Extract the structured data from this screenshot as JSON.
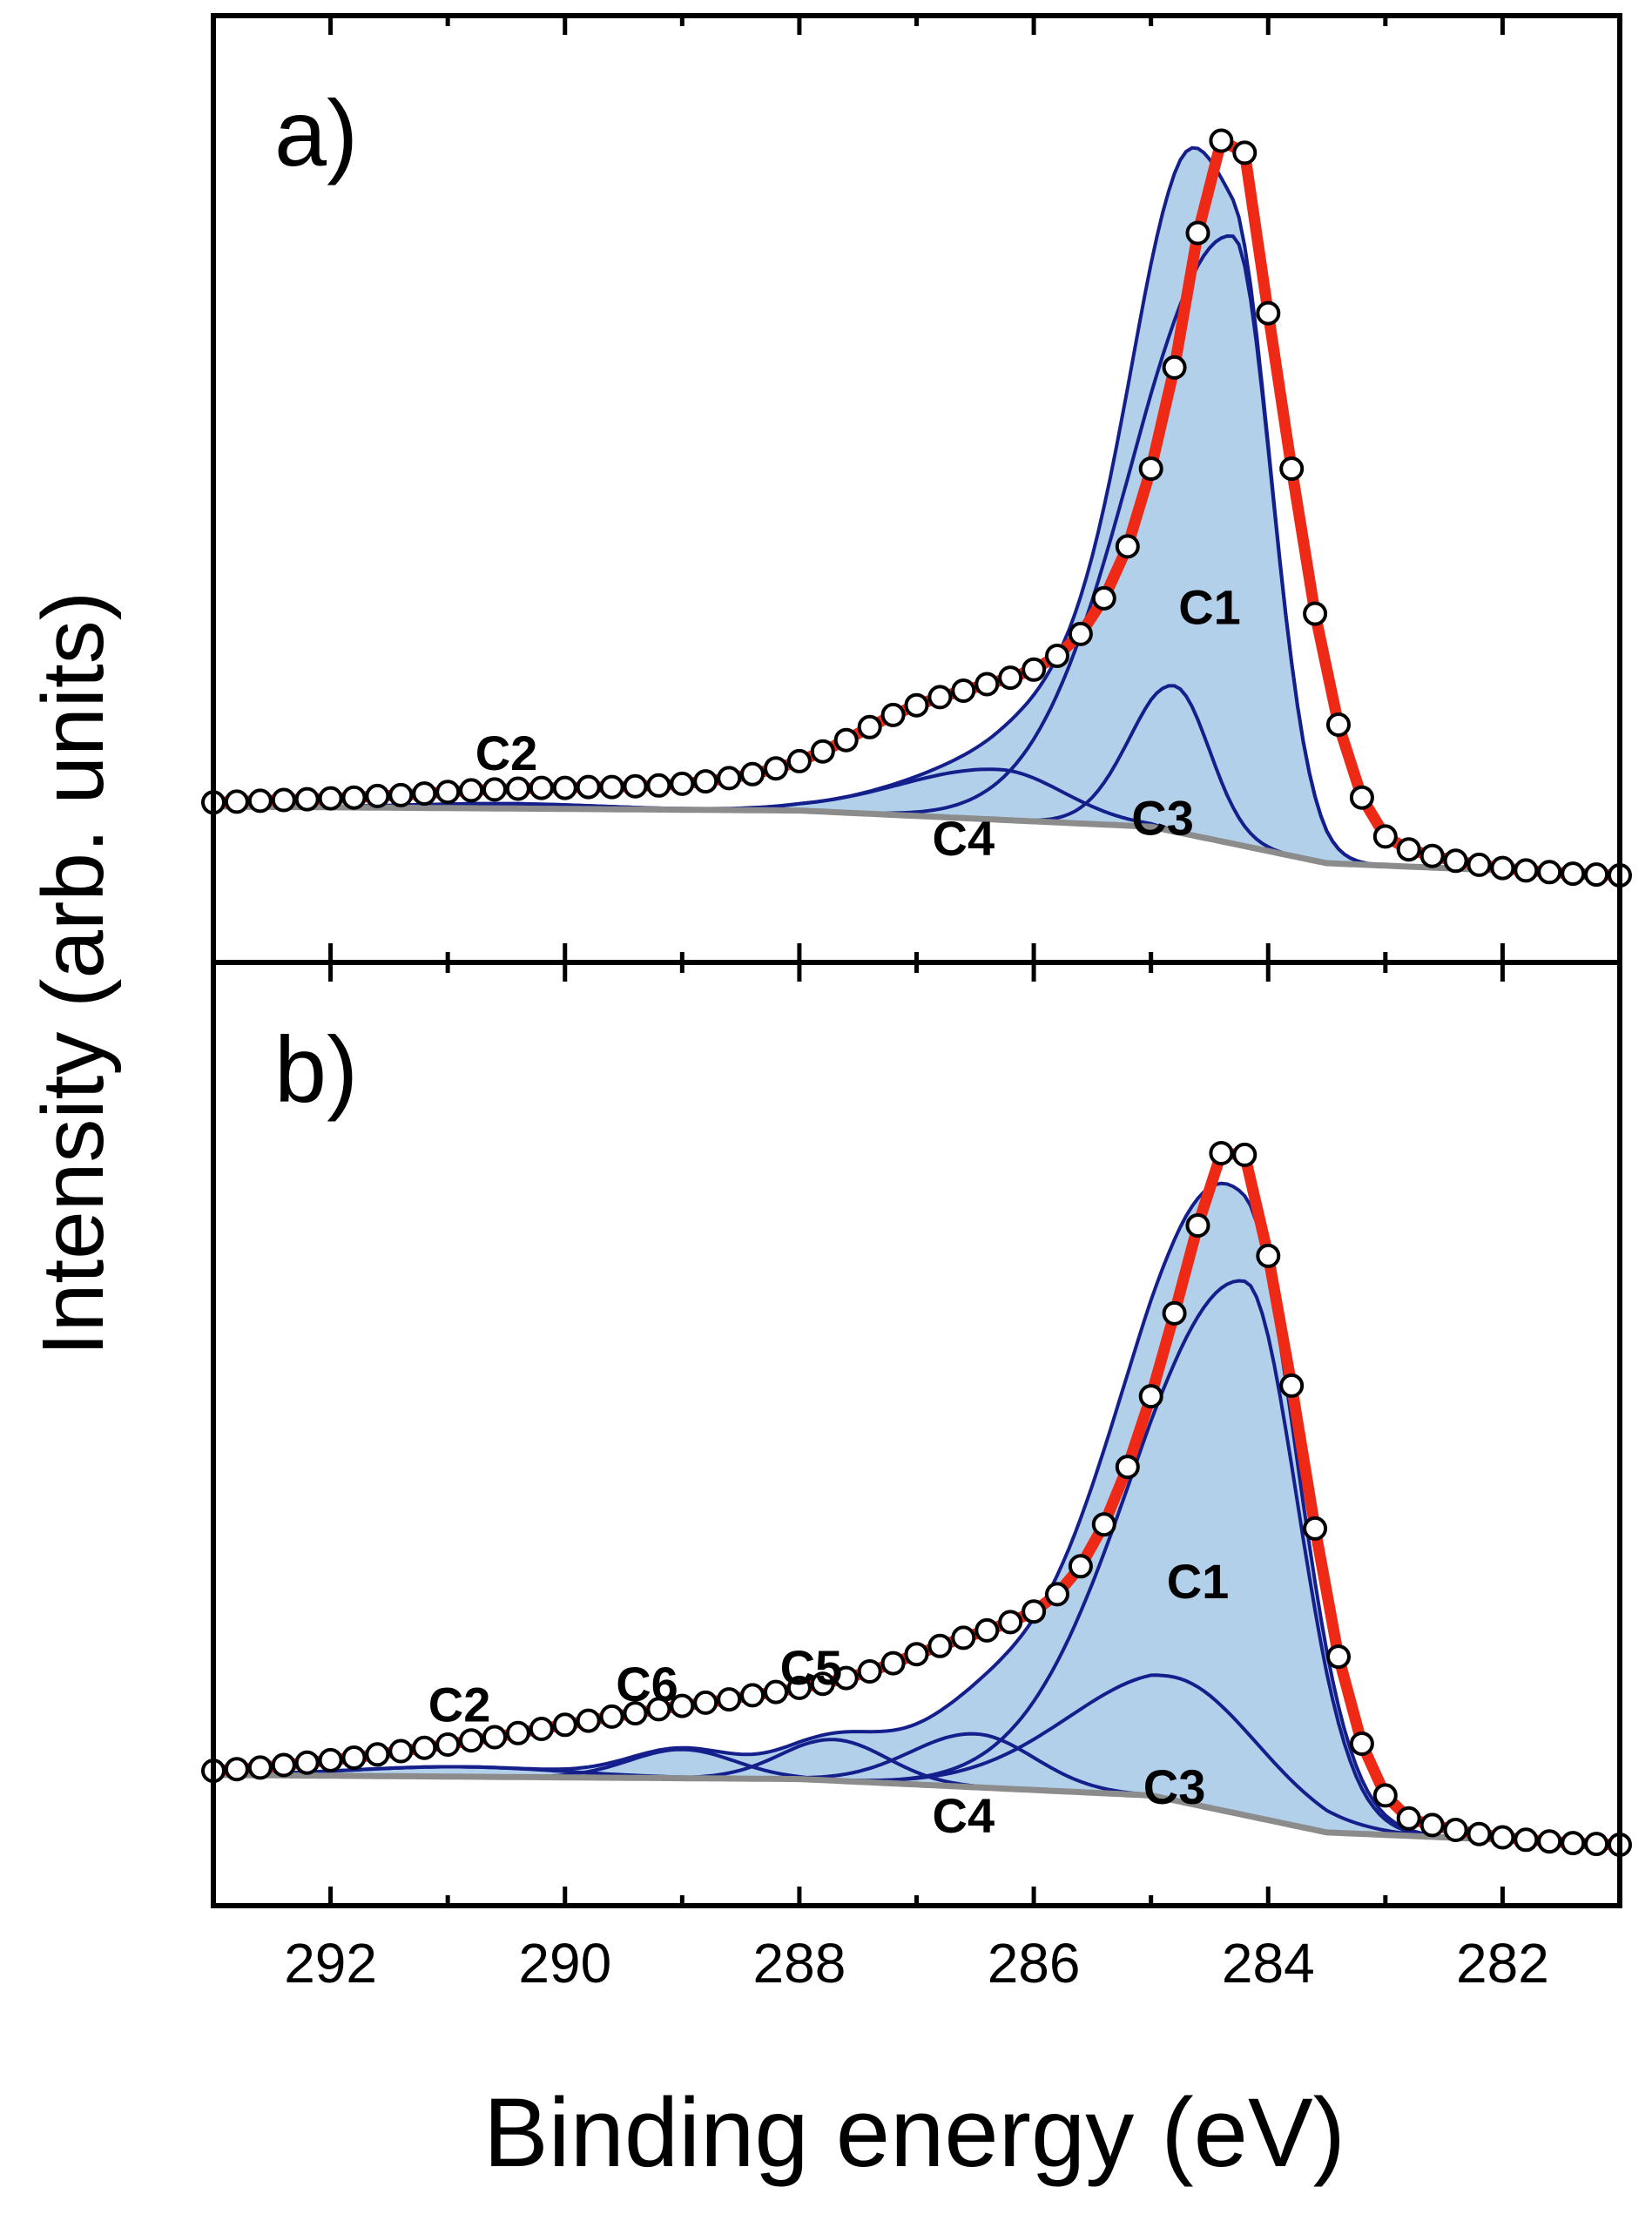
{
  "chart_data": {
    "type": "line",
    "title": "",
    "xlabel": "Binding energy (eV)",
    "ylabel": "Intensity (arb. units)",
    "xlim": [
      293.0,
      281.0
    ],
    "x_reversed": true,
    "xticks": [
      292,
      290,
      288,
      286,
      284,
      282
    ],
    "grid": false,
    "legend": "none",
    "colors": {
      "envelope": "#ee2a16",
      "component_line": "#141f8c",
      "component_fill": "#b3d0eb",
      "background": "#8c8c8c",
      "points_edge": "#000000",
      "points_face": "#ffffff"
    },
    "panels": [
      {
        "label": "a)",
        "ylim": [
          0,
          100
        ],
        "background": [
          [
            293,
            8.5
          ],
          [
            288,
            8
          ],
          [
            285,
            6
          ],
          [
            283.5,
            1.5
          ],
          [
            281,
            0
          ]
        ],
        "components": [
          {
            "name": "C1",
            "center": 284.3,
            "height": 75,
            "sigma_low": 0.33,
            "sigma_high": 0.85,
            "label_pos": [
              284.5,
              31
            ]
          },
          {
            "name": "C2",
            "center": 290.5,
            "height": 0.6,
            "sigma_low": 0.8,
            "sigma_high": 0.8,
            "label_pos": [
              290.5,
              13
            ]
          },
          {
            "name": "C3",
            "center": 284.8,
            "height": 18,
            "sigma_low": 0.3,
            "sigma_high": 0.38,
            "label_pos": [
              284.9,
              5
            ]
          },
          {
            "name": "C4",
            "center": 286.3,
            "height": 6.2,
            "sigma_low": 0.55,
            "sigma_high": 0.85,
            "label_pos": [
              286.6,
              2.5
            ]
          }
        ],
        "envelope_x": [
          293.0,
          292.8,
          292.6,
          292.4,
          292.2,
          292.0,
          291.8,
          291.6,
          291.4,
          291.2,
          291.0,
          290.8,
          290.6,
          290.4,
          290.2,
          290.0,
          289.8,
          289.6,
          289.4,
          289.2,
          289.0,
          288.8,
          288.6,
          288.4,
          288.2,
          288.0,
          287.8,
          287.6,
          287.4,
          287.2,
          287.0,
          286.8,
          286.6,
          286.4,
          286.2,
          286.0,
          285.8,
          285.6,
          285.4,
          285.2,
          285.0,
          284.8,
          284.6,
          284.4,
          284.2,
          284.0,
          283.8,
          283.6,
          283.4,
          283.2,
          283.0,
          282.8,
          282.6,
          282.4,
          282.2,
          282.0,
          281.8,
          281.6,
          281.4,
          281.2,
          281.0
        ],
        "envelope_y": [
          9.0,
          9.1,
          9.2,
          9.3,
          9.4,
          9.5,
          9.6,
          9.8,
          9.9,
          10.1,
          10.3,
          10.5,
          10.6,
          10.7,
          10.8,
          10.8,
          10.9,
          10.9,
          11.0,
          11.1,
          11.3,
          11.6,
          12.0,
          12.5,
          13.2,
          14.1,
          15.3,
          16.7,
          18.3,
          19.8,
          21.0,
          22.0,
          22.8,
          23.6,
          24.4,
          25.4,
          27.1,
          29.8,
          34.2,
          40.6,
          50.2,
          62.7,
          79.3,
          90.7,
          89.2,
          69.4,
          50.2,
          32.3,
          18.6,
          9.6,
          4.8,
          3.2,
          2.4,
          1.8,
          1.3,
          0.9,
          0.6,
          0.4,
          0.2,
          0.1,
          0.0
        ],
        "data_points": [
          [
            293.0,
            9.0
          ],
          [
            292.8,
            9.1
          ],
          [
            292.6,
            9.2
          ],
          [
            292.4,
            9.3
          ],
          [
            292.2,
            9.4
          ],
          [
            292.0,
            9.5
          ],
          [
            291.8,
            9.6
          ],
          [
            291.6,
            9.8
          ],
          [
            291.4,
            9.9
          ],
          [
            291.2,
            10.1
          ],
          [
            291.0,
            10.3
          ],
          [
            290.8,
            10.5
          ],
          [
            290.6,
            10.6
          ],
          [
            290.4,
            10.7
          ],
          [
            290.2,
            10.8
          ],
          [
            290.0,
            10.8
          ],
          [
            289.8,
            10.9
          ],
          [
            289.6,
            10.9
          ],
          [
            289.4,
            11.0
          ],
          [
            289.2,
            11.1
          ],
          [
            289.0,
            11.3
          ],
          [
            288.8,
            11.6
          ],
          [
            288.6,
            12.0
          ],
          [
            288.4,
            12.5
          ],
          [
            288.2,
            13.2
          ],
          [
            288.0,
            14.1
          ],
          [
            287.8,
            15.3
          ],
          [
            287.6,
            16.7
          ],
          [
            287.4,
            18.3
          ],
          [
            287.2,
            19.8
          ],
          [
            287.0,
            21.0
          ],
          [
            286.8,
            22.0
          ],
          [
            286.6,
            22.8
          ],
          [
            286.4,
            23.6
          ],
          [
            286.2,
            24.4
          ],
          [
            286.0,
            25.4
          ],
          [
            285.8,
            27.1
          ],
          [
            285.6,
            29.8
          ],
          [
            285.4,
            34.2
          ],
          [
            285.2,
            40.6
          ],
          [
            285.0,
            50.2
          ],
          [
            284.8,
            62.7
          ],
          [
            284.6,
            79.3
          ],
          [
            284.4,
            90.7
          ],
          [
            284.2,
            89.2
          ],
          [
            284.0,
            69.4
          ],
          [
            283.8,
            50.2
          ],
          [
            283.6,
            32.3
          ],
          [
            283.4,
            18.6
          ],
          [
            283.2,
            9.6
          ],
          [
            283.0,
            4.8
          ],
          [
            282.8,
            3.2
          ],
          [
            282.6,
            2.4
          ],
          [
            282.4,
            1.8
          ],
          [
            282.2,
            1.3
          ],
          [
            282.0,
            0.9
          ],
          [
            281.8,
            0.6
          ],
          [
            281.6,
            0.4
          ],
          [
            281.4,
            0.2
          ],
          [
            281.2,
            0.1
          ],
          [
            281.0,
            0.0
          ]
        ]
      },
      {
        "label": "b)",
        "ylim": [
          0,
          100
        ],
        "background": [
          [
            293,
            8.5
          ],
          [
            288,
            8
          ],
          [
            285,
            6
          ],
          [
            283.5,
            1.5
          ],
          [
            281,
            0
          ]
        ],
        "components": [
          {
            "name": "C1",
            "center": 284.2,
            "height": 65,
            "sigma_low": 0.45,
            "sigma_high": 0.95,
            "label_pos": [
              284.6,
              30
            ]
          },
          {
            "name": "C2",
            "center": 290.9,
            "height": 1.2,
            "sigma_low": 0.9,
            "sigma_high": 0.9,
            "label_pos": [
              290.9,
              15
            ]
          },
          {
            "name": "C3",
            "center": 284.8,
            "height": 15,
            "sigma_low": 0.7,
            "sigma_high": 0.9,
            "label_pos": [
              284.8,
              5
            ]
          },
          {
            "name": "C4",
            "center": 286.5,
            "height": 6.5,
            "sigma_low": 0.5,
            "sigma_high": 0.55,
            "label_pos": [
              286.6,
              1.5
            ]
          },
          {
            "name": "C5",
            "center": 287.7,
            "height": 5.0,
            "sigma_low": 0.45,
            "sigma_high": 0.45,
            "label_pos": [
              287.9,
              19.5
            ]
          },
          {
            "name": "C6",
            "center": 289.0,
            "height": 3.5,
            "sigma_low": 0.45,
            "sigma_high": 0.45,
            "label_pos": [
              289.3,
              17.5
            ]
          }
        ],
        "envelope_x": [
          293.0,
          292.8,
          292.6,
          292.4,
          292.2,
          292.0,
          291.8,
          291.6,
          291.4,
          291.2,
          291.0,
          290.8,
          290.6,
          290.4,
          290.2,
          290.0,
          289.8,
          289.6,
          289.4,
          289.2,
          289.0,
          288.8,
          288.6,
          288.4,
          288.2,
          288.0,
          287.8,
          287.6,
          287.4,
          287.2,
          287.0,
          286.8,
          286.6,
          286.4,
          286.2,
          286.0,
          285.8,
          285.6,
          285.4,
          285.2,
          285.0,
          284.8,
          284.6,
          284.4,
          284.2,
          284.0,
          283.8,
          283.6,
          283.4,
          283.2,
          283.0,
          282.8,
          282.6,
          282.4,
          282.2,
          282.0,
          281.8,
          281.6,
          281.4,
          281.2,
          281.0
        ],
        "envelope_y": [
          9.0,
          9.2,
          9.4,
          9.7,
          10.0,
          10.3,
          10.6,
          11.0,
          11.4,
          11.8,
          12.2,
          12.7,
          13.1,
          13.6,
          14.1,
          14.6,
          15.1,
          15.6,
          16.0,
          16.5,
          16.9,
          17.3,
          17.7,
          18.2,
          18.6,
          19.1,
          19.6,
          20.3,
          21.1,
          22.1,
          23.2,
          24.2,
          25.2,
          26.1,
          27.1,
          28.4,
          30.5,
          33.9,
          39.0,
          46.0,
          54.6,
          64.7,
          75.4,
          84.2,
          84.0,
          71.7,
          55.9,
          38.5,
          22.9,
          12.3,
          6.0,
          3.2,
          2.4,
          1.8,
          1.3,
          0.9,
          0.6,
          0.4,
          0.2,
          0.1,
          0.0
        ],
        "data_points": [
          [
            293.0,
            9.0
          ],
          [
            292.8,
            9.2
          ],
          [
            292.6,
            9.4
          ],
          [
            292.4,
            9.7
          ],
          [
            292.2,
            10.0
          ],
          [
            292.0,
            10.3
          ],
          [
            291.8,
            10.6
          ],
          [
            291.6,
            11.0
          ],
          [
            291.4,
            11.4
          ],
          [
            291.2,
            11.8
          ],
          [
            291.0,
            12.2
          ],
          [
            290.8,
            12.7
          ],
          [
            290.6,
            13.1
          ],
          [
            290.4,
            13.6
          ],
          [
            290.2,
            14.1
          ],
          [
            290.0,
            14.6
          ],
          [
            289.8,
            15.1
          ],
          [
            289.6,
            15.6
          ],
          [
            289.4,
            16.0
          ],
          [
            289.2,
            16.5
          ],
          [
            289.0,
            16.9
          ],
          [
            288.8,
            17.3
          ],
          [
            288.6,
            17.7
          ],
          [
            288.4,
            18.2
          ],
          [
            288.2,
            18.6
          ],
          [
            288.0,
            19.1
          ],
          [
            287.8,
            19.6
          ],
          [
            287.6,
            20.3
          ],
          [
            287.4,
            21.1
          ],
          [
            287.2,
            22.1
          ],
          [
            287.0,
            23.2
          ],
          [
            286.8,
            24.2
          ],
          [
            286.6,
            25.2
          ],
          [
            286.4,
            26.1
          ],
          [
            286.2,
            27.1
          ],
          [
            286.0,
            28.4
          ],
          [
            285.8,
            30.5
          ],
          [
            285.6,
            33.9
          ],
          [
            285.4,
            39.0
          ],
          [
            285.2,
            46.0
          ],
          [
            285.0,
            54.6
          ],
          [
            284.8,
            64.7
          ],
          [
            284.6,
            75.4
          ],
          [
            284.4,
            84.2
          ],
          [
            284.2,
            84.0
          ],
          [
            284.0,
            71.7
          ],
          [
            283.8,
            55.9
          ],
          [
            283.6,
            38.5
          ],
          [
            283.4,
            22.9
          ],
          [
            283.2,
            12.3
          ],
          [
            283.0,
            6.0
          ],
          [
            282.8,
            3.2
          ],
          [
            282.6,
            2.4
          ],
          [
            282.4,
            1.8
          ],
          [
            282.2,
            1.3
          ],
          [
            282.0,
            0.9
          ],
          [
            281.8,
            0.6
          ],
          [
            281.6,
            0.4
          ],
          [
            281.4,
            0.2
          ],
          [
            281.2,
            0.1
          ],
          [
            281.0,
            0.0
          ]
        ]
      }
    ]
  }
}
